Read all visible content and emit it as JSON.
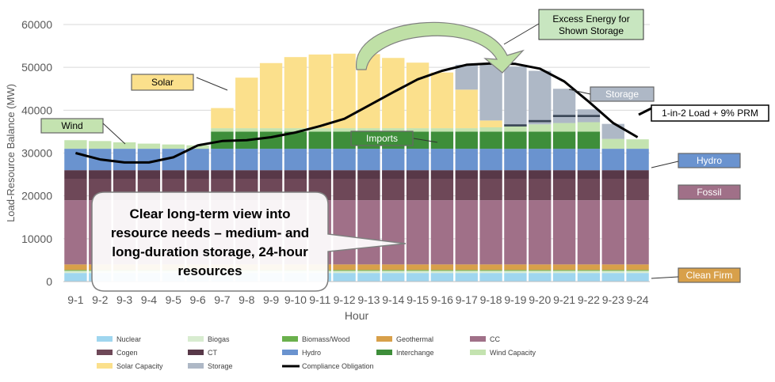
{
  "chart_data": {
    "type": "bar",
    "stacked": true,
    "xlabel": "Hour",
    "ylabel": "Load-Resource Balance (MW)",
    "ylim": [
      0,
      60000
    ],
    "yticks": [
      0,
      10000,
      20000,
      30000,
      40000,
      50000,
      60000
    ],
    "grid": "horizontal",
    "legend_position": "bottom",
    "categories": [
      "9-1",
      "9-2",
      "9-3",
      "9-4",
      "9-5",
      "9-6",
      "9-7",
      "9-8",
      "9-9",
      "9-10",
      "9-11",
      "9-12",
      "9-13",
      "9-14",
      "9-15",
      "9-16",
      "9-17",
      "9-18",
      "9-19",
      "9-20",
      "9-21",
      "9-22",
      "9-23",
      "9-24"
    ],
    "series": [
      {
        "name": "Nuclear",
        "color": "#9fd6ef",
        "values": [
          2000,
          2000,
          2000,
          2000,
          2000,
          2000,
          2000,
          2000,
          2000,
          2000,
          2000,
          2000,
          2000,
          2000,
          2000,
          2000,
          2000,
          2000,
          2000,
          2000,
          2000,
          2000,
          2000,
          2000
        ]
      },
      {
        "name": "Biogas",
        "color": "#d8ecd0",
        "values": [
          500,
          500,
          500,
          500,
          500,
          500,
          500,
          500,
          500,
          500,
          500,
          500,
          500,
          500,
          500,
          500,
          500,
          500,
          500,
          500,
          500,
          500,
          500,
          500
        ]
      },
      {
        "name": "Biomass/Wood",
        "color": "#6ab04c",
        "values": [
          200,
          200,
          200,
          200,
          200,
          200,
          200,
          200,
          200,
          200,
          200,
          200,
          200,
          200,
          200,
          200,
          200,
          200,
          200,
          200,
          200,
          200,
          200,
          200
        ]
      },
      {
        "name": "Geothermal",
        "color": "#d8a04a",
        "values": [
          1300,
          1300,
          1300,
          1300,
          1300,
          1300,
          1300,
          1300,
          1300,
          1300,
          1300,
          1300,
          1300,
          1300,
          1300,
          1300,
          1300,
          1300,
          1300,
          1300,
          1300,
          1300,
          1300,
          1300
        ]
      },
      {
        "name": "CC",
        "color": "#a07088",
        "values": [
          15000,
          15000,
          15000,
          15000,
          15000,
          15000,
          15000,
          15000,
          15000,
          15000,
          15000,
          15000,
          15000,
          15000,
          15000,
          15000,
          15000,
          15000,
          15000,
          15000,
          15000,
          15000,
          15000,
          15000
        ]
      },
      {
        "name": "Cogen",
        "color": "#6e4858",
        "values": [
          5000,
          5000,
          5000,
          5000,
          5000,
          5000,
          5000,
          5000,
          5000,
          5000,
          5000,
          5000,
          5000,
          5000,
          5000,
          5000,
          5000,
          5000,
          5000,
          5000,
          5000,
          5000,
          5000,
          5000
        ]
      },
      {
        "name": "CT",
        "color": "#583848",
        "values": [
          2000,
          2000,
          2000,
          2000,
          2000,
          2000,
          2000,
          2000,
          2000,
          2000,
          2000,
          2000,
          2000,
          2000,
          2000,
          2000,
          2000,
          2000,
          2000,
          2000,
          2000,
          2000,
          2000,
          2000
        ]
      },
      {
        "name": "Hydro",
        "color": "#6a93cf",
        "values": [
          5000,
          5000,
          5000,
          5000,
          5000,
          5000,
          5000,
          5000,
          5000,
          5000,
          5000,
          5000,
          5000,
          5000,
          5000,
          5000,
          5000,
          5000,
          5000,
          5000,
          5000,
          5000,
          5000,
          5000
        ]
      },
      {
        "name": "Interchange",
        "color": "#3e8e3a",
        "values": [
          0,
          0,
          0,
          0,
          0,
          0,
          4000,
          4000,
          4000,
          4000,
          4000,
          4000,
          4000,
          4000,
          4000,
          4000,
          4000,
          4000,
          4000,
          4000,
          4000,
          4000,
          0,
          0
        ]
      },
      {
        "name": "Wind Capacity",
        "color": "#c4e3b0",
        "values": [
          2000,
          1800,
          1500,
          1200,
          1000,
          800,
          800,
          800,
          800,
          800,
          800,
          800,
          800,
          800,
          800,
          800,
          800,
          1000,
          1400,
          1700,
          2000,
          2200,
          2300,
          2200
        ]
      },
      {
        "name": "Solar Capacity",
        "color": "#fbe08c",
        "values": [
          0,
          0,
          0,
          0,
          0,
          0,
          4700,
          11800,
          15200,
          16600,
          17200,
          17400,
          17300,
          16400,
          15300,
          13000,
          9000,
          1600,
          0,
          0,
          0,
          0,
          0,
          0
        ]
      },
      {
        "name": "Storage",
        "color": "#aeb8c6",
        "values": [
          0,
          0,
          0,
          0,
          0,
          0,
          0,
          0,
          0,
          0,
          0,
          0,
          0,
          0,
          0,
          0,
          5800,
          13000,
          13800,
          12500,
          8000,
          3000,
          3500,
          0
        ]
      }
    ],
    "line_series": [
      {
        "name": "Compliance Obligation",
        "color": "#000000",
        "values": [
          30000,
          28500,
          27800,
          27800,
          29000,
          31800,
          32800,
          33000,
          33700,
          34800,
          36300,
          38000,
          41100,
          44200,
          47200,
          49200,
          50600,
          50900,
          50800,
          49700,
          46700,
          42000,
          37000,
          33700
        ]
      }
    ],
    "prm_series_values": [
      0,
      0,
      0,
      0,
      0,
      0,
      0,
      0,
      0,
      0,
      0,
      0,
      0,
      0,
      0,
      0,
      0,
      0,
      36200,
      37200,
      38400,
      38400,
      0,
      0
    ],
    "annotations": {
      "excess": "Excess Energy for Shown Storage",
      "solar": "Solar",
      "storage": "Storage",
      "wind": "Wind",
      "imports": "Imports",
      "load": "1-in-2 Load + 9% PRM",
      "hydro": "Hydro",
      "fossil": "Fossil",
      "clean_firm": "Clean Firm",
      "callout": "Clear long-term view into resource needs – medium- and long-duration storage, 24-hour resources"
    },
    "legend_order": [
      "Nuclear",
      "Biogas",
      "Biomass/Wood",
      "Geothermal",
      "CC",
      "Cogen",
      "CT",
      "Hydro",
      "Interchange",
      "Wind Capacity",
      "Solar Capacity",
      "Storage",
      "Compliance Obligation"
    ]
  }
}
